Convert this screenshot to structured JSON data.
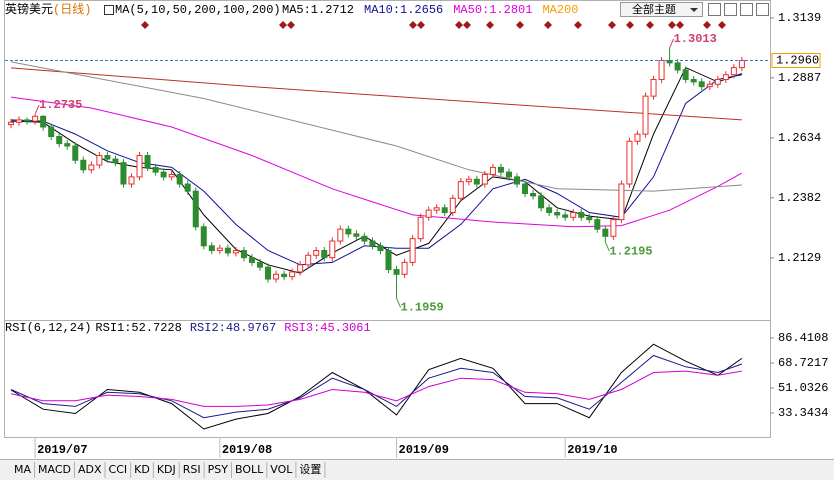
{
  "header": {
    "title": "英镑美元",
    "period": "(日线)",
    "theme_button": "全部主题"
  },
  "chart_data": [
    {
      "type": "candlestick",
      "indicator": "MA(5,10,50,200,100,200)",
      "open": [
        1.269,
        1.27,
        1.271,
        1.2705,
        1.2725,
        1.268,
        1.264,
        1.261,
        1.26,
        1.254,
        1.25,
        1.252,
        1.256,
        1.2545,
        1.253,
        1.244,
        1.247,
        1.256,
        1.251,
        1.249,
        1.247,
        1.248,
        1.244,
        1.241,
        1.226,
        1.218,
        1.216,
        1.217,
        1.215,
        1.216,
        1.213,
        1.211,
        1.209,
        1.204,
        1.206,
        1.205,
        1.207,
        1.21,
        1.214,
        1.216,
        1.213,
        1.22,
        1.225,
        1.223,
        1.222,
        1.22,
        1.218,
        1.216,
        1.208,
        1.206,
        1.211,
        1.221,
        1.23,
        1.233,
        1.234,
        1.232,
        1.238,
        1.245,
        1.246,
        1.244,
        1.248,
        1.251,
        1.249,
        1.247,
        1.244,
        1.24,
        1.239,
        1.234,
        1.232,
        1.231,
        1.23,
        1.232,
        1.23,
        1.229,
        1.225,
        1.222,
        1.229,
        1.244,
        1.262,
        1.265,
        1.281,
        1.288,
        1.296,
        1.295,
        1.292,
        1.288,
        1.287,
        1.285,
        1.286,
        1.288,
        1.29,
        1.293
      ],
      "high": [
        1.2715,
        1.2725,
        1.272,
        1.2735,
        1.273,
        1.2695,
        1.2655,
        1.2625,
        1.2615,
        1.2555,
        1.2535,
        1.2575,
        1.2575,
        1.256,
        1.2545,
        1.2485,
        1.2575,
        1.2575,
        1.2525,
        1.2505,
        1.2495,
        1.2495,
        1.2455,
        1.2425,
        1.2275,
        1.2195,
        1.2185,
        1.2185,
        1.2175,
        1.2175,
        1.2145,
        1.2125,
        1.2105,
        1.2075,
        1.2075,
        1.2085,
        1.2115,
        1.2155,
        1.2175,
        1.2175,
        1.2215,
        1.2265,
        1.2265,
        1.2245,
        1.2235,
        1.2215,
        1.2195,
        1.2175,
        1.2095,
        1.2125,
        1.2225,
        1.2315,
        1.2345,
        1.2355,
        1.2355,
        1.2395,
        1.2465,
        1.2475,
        1.2475,
        1.2495,
        1.2525,
        1.2525,
        1.2505,
        1.2485,
        1.2455,
        1.2415,
        1.2405,
        1.2355,
        1.2335,
        1.2325,
        1.2335,
        1.2335,
        1.2315,
        1.2305,
        1.2265,
        1.2305,
        1.2455,
        1.2635,
        1.2665,
        1.2825,
        1.2895,
        1.2975,
        1.3013,
        1.2965,
        1.2935,
        1.2895,
        1.2885,
        1.2875,
        1.2895,
        1.2915,
        1.2945,
        1.2975
      ],
      "low": [
        1.2675,
        1.2685,
        1.269,
        1.269,
        1.2665,
        1.2625,
        1.2595,
        1.2585,
        1.2525,
        1.2485,
        1.2485,
        1.2505,
        1.253,
        1.2515,
        1.2425,
        1.2425,
        1.2455,
        1.2495,
        1.2475,
        1.2455,
        1.2455,
        1.2425,
        1.2395,
        1.2245,
        1.2165,
        1.2145,
        1.2145,
        1.2135,
        1.2135,
        1.2115,
        1.2095,
        1.2075,
        1.2025,
        1.2025,
        1.2035,
        1.2035,
        1.2055,
        1.2085,
        1.2125,
        1.2115,
        1.2115,
        1.2185,
        1.2215,
        1.2205,
        1.2185,
        1.2165,
        1.2145,
        1.2065,
        1.1959,
        1.2045,
        1.2095,
        1.2195,
        1.2285,
        1.2315,
        1.2305,
        1.2305,
        1.2365,
        1.2435,
        1.2425,
        1.2425,
        1.2465,
        1.2475,
        1.2455,
        1.2425,
        1.2385,
        1.2375,
        1.2325,
        1.2305,
        1.2295,
        1.2285,
        1.2285,
        1.2285,
        1.2275,
        1.2235,
        1.2195,
        1.2205,
        1.2275,
        1.2425,
        1.2605,
        1.2635,
        1.2795,
        1.2865,
        1.2935,
        1.2905,
        1.2865,
        1.2855,
        1.2835,
        1.2835,
        1.2845,
        1.2865,
        1.2885,
        1.2915
      ],
      "close": [
        1.27,
        1.271,
        1.2705,
        1.2725,
        1.268,
        1.264,
        1.261,
        1.26,
        1.254,
        1.25,
        1.252,
        1.256,
        1.2545,
        1.253,
        1.244,
        1.247,
        1.256,
        1.251,
        1.249,
        1.247,
        1.248,
        1.244,
        1.241,
        1.226,
        1.218,
        1.216,
        1.217,
        1.215,
        1.216,
        1.213,
        1.211,
        1.209,
        1.204,
        1.206,
        1.205,
        1.207,
        1.21,
        1.214,
        1.216,
        1.213,
        1.22,
        1.225,
        1.223,
        1.222,
        1.22,
        1.218,
        1.216,
        1.208,
        1.206,
        1.211,
        1.221,
        1.23,
        1.233,
        1.234,
        1.232,
        1.238,
        1.245,
        1.246,
        1.244,
        1.248,
        1.251,
        1.249,
        1.247,
        1.244,
        1.24,
        1.239,
        1.234,
        1.232,
        1.231,
        1.23,
        1.232,
        1.23,
        1.229,
        1.225,
        1.222,
        1.229,
        1.244,
        1.262,
        1.265,
        1.281,
        1.288,
        1.296,
        1.295,
        1.292,
        1.288,
        1.287,
        1.285,
        1.286,
        1.288,
        1.29,
        1.293,
        1.296
      ],
      "up_color": "#e8302c",
      "down_color": "#2e8b2e",
      "xlim": [
        -0.75,
        94.5
      ],
      "ylim": [
        1.1876,
        1.3181
      ],
      "yticks": [
        1.3139,
        1.2887,
        1.2634,
        1.2382,
        1.2129
      ],
      "xticks": [
        {
          "value": 3,
          "label": "2019/07"
        },
        {
          "value": 26,
          "label": "2019/08"
        },
        {
          "value": 48,
          "label": "2019/09"
        },
        {
          "value": 69,
          "label": "2019/10"
        }
      ],
      "series": [
        {
          "name": "MA5:1.2712",
          "color": "#000000",
          "x": [
            0,
            4,
            8,
            12,
            16,
            20,
            24,
            28,
            32,
            36,
            40,
            44,
            48,
            52,
            56,
            60,
            64,
            68,
            72,
            76,
            80,
            84,
            88,
            91
          ],
          "values": [
            1.2705,
            1.27,
            1.261,
            1.2535,
            1.251,
            1.25,
            1.231,
            1.2165,
            1.21,
            1.2065,
            1.215,
            1.222,
            1.214,
            1.219,
            1.237,
            1.247,
            1.245,
            1.234,
            1.2305,
            1.229,
            1.265,
            1.293,
            1.287,
            1.2905
          ]
        },
        {
          "name": "MA10:1.2656",
          "color": "#10109a",
          "x": [
            0,
            4,
            8,
            12,
            16,
            20,
            24,
            28,
            32,
            36,
            40,
            44,
            48,
            52,
            56,
            60,
            64,
            68,
            72,
            76,
            80,
            84,
            88,
            91
          ],
          "values": [
            1.271,
            1.2705,
            1.265,
            1.258,
            1.253,
            1.251,
            1.241,
            1.227,
            1.216,
            1.21,
            1.211,
            1.218,
            1.217,
            1.217,
            1.227,
            1.242,
            1.246,
            1.24,
            1.232,
            1.23,
            1.247,
            1.278,
            1.288,
            1.29
          ]
        },
        {
          "name": "MA50:1.2801",
          "color": "#e000e0",
          "x": [
            0,
            10,
            20,
            30,
            40,
            50,
            60,
            70,
            76,
            82,
            88,
            91
          ],
          "values": [
            1.2806,
            1.276,
            1.268,
            1.256,
            1.242,
            1.231,
            1.228,
            1.226,
            1.2265,
            1.233,
            1.243,
            1.2486
          ]
        },
        {
          "name": "MA200",
          "color": "#c03020",
          "legend_color": "#ff9900",
          "x": [
            0,
            30,
            60,
            91
          ],
          "values": [
            1.2929,
            1.285,
            1.278,
            1.271
          ]
        },
        {
          "name": null,
          "color": "#8a8a8a",
          "x": [
            0,
            24,
            48,
            57,
            68,
            80,
            91
          ],
          "values": [
            1.2954,
            1.28,
            1.26,
            1.25,
            1.242,
            1.241,
            1.2436
          ]
        }
      ],
      "last_price": {
        "value": 1.296,
        "label": "1.2960"
      },
      "annotations": [
        {
          "label": "1.2735",
          "x": 3,
          "value": 1.2735,
          "color": "#d0406a",
          "position": "above"
        },
        {
          "label": "1.1959",
          "x": 48,
          "value": 1.1959,
          "color": "#4a9a3a",
          "position": "below"
        },
        {
          "label": "1.2195",
          "x": 74,
          "value": 1.2195,
          "color": "#4a9a3a",
          "position": "below"
        },
        {
          "label": "1.3013",
          "x": 82,
          "value": 1.3013,
          "color": "#d0406a",
          "position": "above"
        }
      ]
    },
    {
      "type": "line",
      "title": "RSI(6,12,24)",
      "xlim": [
        -0.75,
        94.5
      ],
      "ylim": [
        17.78,
        97.73
      ],
      "yticks": [
        86.4108,
        68.7217,
        51.0326,
        33.3434
      ],
      "series": [
        {
          "name": "RSI1:52.7228",
          "color": "#000000",
          "x": [
            0,
            4,
            8,
            12,
            16,
            20,
            24,
            28,
            32,
            36,
            40,
            44,
            48,
            52,
            56,
            60,
            64,
            68,
            72,
            76,
            80,
            84,
            88,
            91
          ],
          "values": [
            49.6,
            36,
            33,
            50,
            48,
            40,
            22,
            29,
            33,
            45,
            62,
            50,
            32,
            64,
            72,
            65,
            40,
            40,
            30,
            62,
            82,
            70,
            60,
            72
          ]
        },
        {
          "name": "RSI2:48.9767",
          "color": "#1a1a8c",
          "x": [
            0,
            4,
            8,
            12,
            16,
            20,
            24,
            28,
            32,
            36,
            40,
            44,
            48,
            52,
            56,
            60,
            64,
            68,
            72,
            76,
            80,
            84,
            88,
            91
          ],
          "values": [
            50,
            40,
            38,
            48,
            47,
            42,
            30,
            34,
            36,
            44,
            58,
            50,
            38,
            58,
            65,
            62,
            45,
            44,
            36,
            55,
            74,
            66,
            62,
            68
          ]
        },
        {
          "name": "RSI3:45.3061",
          "color": "#d000d0",
          "x": [
            0,
            4,
            8,
            12,
            16,
            20,
            24,
            28,
            32,
            36,
            40,
            44,
            48,
            52,
            56,
            60,
            64,
            68,
            72,
            76,
            80,
            84,
            88,
            91
          ],
          "values": [
            47,
            42,
            42,
            46,
            45,
            43,
            38,
            38,
            39,
            43,
            50,
            48,
            42,
            52,
            58,
            57,
            48,
            47,
            43,
            50,
            62,
            63,
            60,
            63
          ]
        }
      ]
    }
  ],
  "footer": {
    "tabs": [
      "MA",
      "MACD",
      "ADX",
      "CCI",
      "KD",
      "KDJ",
      "RSI",
      "PSY",
      "BOLL",
      "VOL",
      "设置"
    ]
  }
}
